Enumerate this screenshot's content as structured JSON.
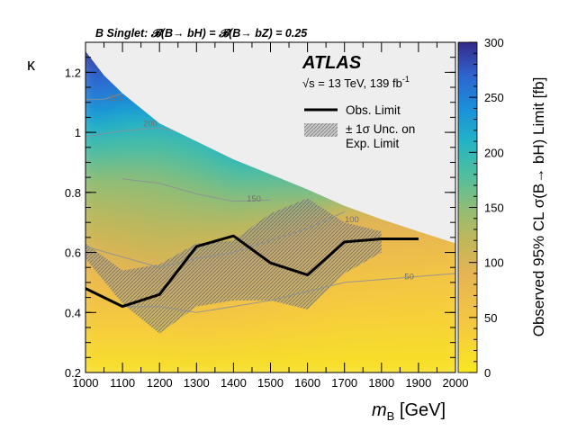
{
  "chart_data": {
    "type": "heatmap",
    "title": "B Singlet:  𝓑(B→ bH) = 𝓑(B→ bZ) = 0.25",
    "experiment": "ATLAS",
    "energy_label": "√s = 13 TeV, 139 fb",
    "energy_sup": "-1",
    "xlabel_main": "m",
    "xlabel_sub": "B",
    "xlabel_unit": " [GeV]",
    "ylabel": "κ",
    "zlabel": "Observed 95% CL σ(B→ bH) Limit [fb]",
    "xlim": [
      1000,
      2000
    ],
    "ylim": [
      0.2,
      1.3
    ],
    "zlim": [
      0,
      300
    ],
    "x_ticks": [
      1000,
      1100,
      1200,
      1300,
      1400,
      1500,
      1600,
      1700,
      1800,
      1900,
      2000
    ],
    "y_ticks": [
      0.2,
      0.4,
      0.6,
      0.8,
      1,
      1.2
    ],
    "y_tick_labels": [
      "0.2",
      "0.4",
      "0.6",
      "0.8",
      "1",
      "1.2"
    ],
    "z_ticks": [
      0,
      50,
      100,
      150,
      200,
      250,
      300
    ],
    "legend": {
      "obs_label": "Obs. Limit",
      "band_label_1": "± 1σ Unc. on",
      "band_label_2": "Exp. Limit"
    },
    "observed_limit": {
      "x": [
        1000,
        1100,
        1200,
        1300,
        1400,
        1500,
        1600,
        1700,
        1800,
        1900
      ],
      "kappa": [
        0.48,
        0.42,
        0.46,
        0.62,
        0.655,
        0.565,
        0.525,
        0.635,
        0.645,
        0.645
      ]
    },
    "expected_band": {
      "x": [
        1000,
        1100,
        1200,
        1300,
        1400,
        1500,
        1600,
        1700,
        1800
      ],
      "upper": [
        0.63,
        0.54,
        0.56,
        0.63,
        0.64,
        0.73,
        0.78,
        0.7,
        0.67
      ],
      "lower": [
        0.58,
        0.43,
        0.33,
        0.42,
        0.44,
        0.44,
        0.41,
        0.53,
        0.6
      ]
    },
    "excluded_boundary": {
      "x": [
        1000,
        1050,
        1100,
        1200,
        1300,
        1400,
        1500,
        1600,
        1700,
        1800,
        1900,
        2000
      ],
      "kappa": [
        1.27,
        1.19,
        1.13,
        1.03,
        0.97,
        0.91,
        0.86,
        0.81,
        0.755,
        0.71,
        0.67,
        0.63
      ]
    },
    "contours": [
      {
        "label": "250",
        "x": [
          1000,
          1050,
          1100
        ],
        "kappa": [
          1.11,
          1.11,
          1.13
        ],
        "label_at": [
          1080,
          1.105
        ]
      },
      {
        "label": "200",
        "x": [
          1000,
          1100,
          1200,
          1300,
          1400
        ],
        "kappa": [
          0.985,
          1.005,
          1.015,
          0.99,
          0.92
        ],
        "label_at": [
          1175,
          1.02
        ]
      },
      {
        "label": "150",
        "x": [
          1100,
          1200,
          1300,
          1400,
          1500
        ],
        "kappa": [
          0.845,
          0.83,
          0.795,
          0.77,
          0.775
        ],
        "label_at": [
          1455,
          0.77
        ]
      },
      {
        "label": "100",
        "x": [
          1000,
          1100,
          1200,
          1300,
          1400,
          1500,
          1600,
          1700
        ],
        "kappa": [
          0.62,
          0.585,
          0.55,
          0.58,
          0.6,
          0.64,
          0.68,
          0.735
        ],
        "label_at": [
          1720,
          0.7
        ]
      },
      {
        "label": "50",
        "x": [
          1100,
          1200,
          1300,
          1400,
          1500,
          1600,
          1700,
          1800,
          1900,
          2000
        ],
        "kappa": [
          0.42,
          0.42,
          0.4,
          0.42,
          0.44,
          0.47,
          0.5,
          0.51,
          0.52,
          0.53
        ],
        "label_at": [
          1875,
          0.51
        ]
      }
    ]
  }
}
